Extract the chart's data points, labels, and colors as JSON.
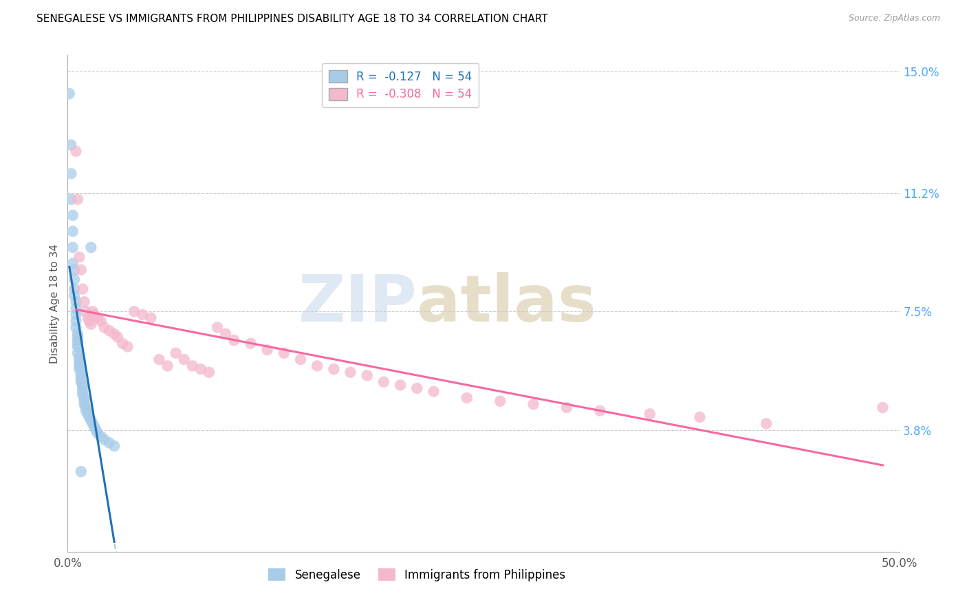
{
  "title": "SENEGALESE VS IMMIGRANTS FROM PHILIPPINES DISABILITY AGE 18 TO 34 CORRELATION CHART",
  "source": "Source: ZipAtlas.com",
  "ylabel": "Disability Age 18 to 34",
  "x_min": 0.0,
  "x_max": 0.5,
  "y_min": 0.0,
  "y_max": 0.155,
  "y_ticks_right": [
    0.038,
    0.075,
    0.112,
    0.15
  ],
  "y_tick_labels_right": [
    "3.8%",
    "7.5%",
    "11.2%",
    "15.0%"
  ],
  "blue_scatter_color": "#a8cce8",
  "pink_scatter_color": "#f4b8cb",
  "blue_line_color": "#2171b5",
  "pink_line_color": "#f768a1",
  "dashed_line_color": "#aec7e0",
  "r_blue": -0.127,
  "r_pink": -0.308,
  "n": 54,
  "legend_r_blue": "R =  -0.127   N = 54",
  "legend_r_pink": "R =  -0.308   N = 54",
  "legend_blue": "Senegalese",
  "legend_pink": "Immigrants from Philippines",
  "senegalese_x": [
    0.001,
    0.002,
    0.002,
    0.002,
    0.003,
    0.003,
    0.003,
    0.003,
    0.004,
    0.004,
    0.004,
    0.004,
    0.005,
    0.005,
    0.005,
    0.005,
    0.005,
    0.006,
    0.006,
    0.006,
    0.006,
    0.006,
    0.006,
    0.007,
    0.007,
    0.007,
    0.007,
    0.007,
    0.008,
    0.008,
    0.008,
    0.008,
    0.009,
    0.009,
    0.009,
    0.009,
    0.01,
    0.01,
    0.01,
    0.011,
    0.011,
    0.012,
    0.013,
    0.014,
    0.015,
    0.016,
    0.017,
    0.018,
    0.02,
    0.022,
    0.025,
    0.028,
    0.014,
    0.008
  ],
  "senegalese_y": [
    0.143,
    0.127,
    0.118,
    0.11,
    0.105,
    0.1,
    0.095,
    0.09,
    0.088,
    0.085,
    0.082,
    0.08,
    0.078,
    0.076,
    0.074,
    0.072,
    0.07,
    0.068,
    0.067,
    0.066,
    0.065,
    0.064,
    0.062,
    0.061,
    0.06,
    0.059,
    0.058,
    0.057,
    0.056,
    0.055,
    0.054,
    0.053,
    0.052,
    0.051,
    0.05,
    0.049,
    0.048,
    0.047,
    0.046,
    0.045,
    0.044,
    0.043,
    0.042,
    0.041,
    0.04,
    0.039,
    0.038,
    0.037,
    0.036,
    0.035,
    0.034,
    0.033,
    0.095,
    0.025
  ],
  "philippines_x": [
    0.005,
    0.006,
    0.007,
    0.008,
    0.009,
    0.01,
    0.011,
    0.012,
    0.013,
    0.014,
    0.015,
    0.016,
    0.018,
    0.02,
    0.022,
    0.025,
    0.028,
    0.03,
    0.033,
    0.036,
    0.04,
    0.045,
    0.05,
    0.055,
    0.06,
    0.065,
    0.07,
    0.075,
    0.08,
    0.085,
    0.09,
    0.095,
    0.1,
    0.11,
    0.12,
    0.13,
    0.14,
    0.15,
    0.16,
    0.17,
    0.18,
    0.19,
    0.2,
    0.21,
    0.22,
    0.24,
    0.26,
    0.28,
    0.3,
    0.32,
    0.35,
    0.38,
    0.42,
    0.49
  ],
  "philippines_y": [
    0.125,
    0.11,
    0.092,
    0.088,
    0.082,
    0.078,
    0.075,
    0.073,
    0.072,
    0.071,
    0.075,
    0.074,
    0.073,
    0.072,
    0.07,
    0.069,
    0.068,
    0.067,
    0.065,
    0.064,
    0.075,
    0.074,
    0.073,
    0.06,
    0.058,
    0.062,
    0.06,
    0.058,
    0.057,
    0.056,
    0.07,
    0.068,
    0.066,
    0.065,
    0.063,
    0.062,
    0.06,
    0.058,
    0.057,
    0.056,
    0.055,
    0.053,
    0.052,
    0.051,
    0.05,
    0.048,
    0.047,
    0.046,
    0.045,
    0.044,
    0.043,
    0.042,
    0.04,
    0.045
  ]
}
